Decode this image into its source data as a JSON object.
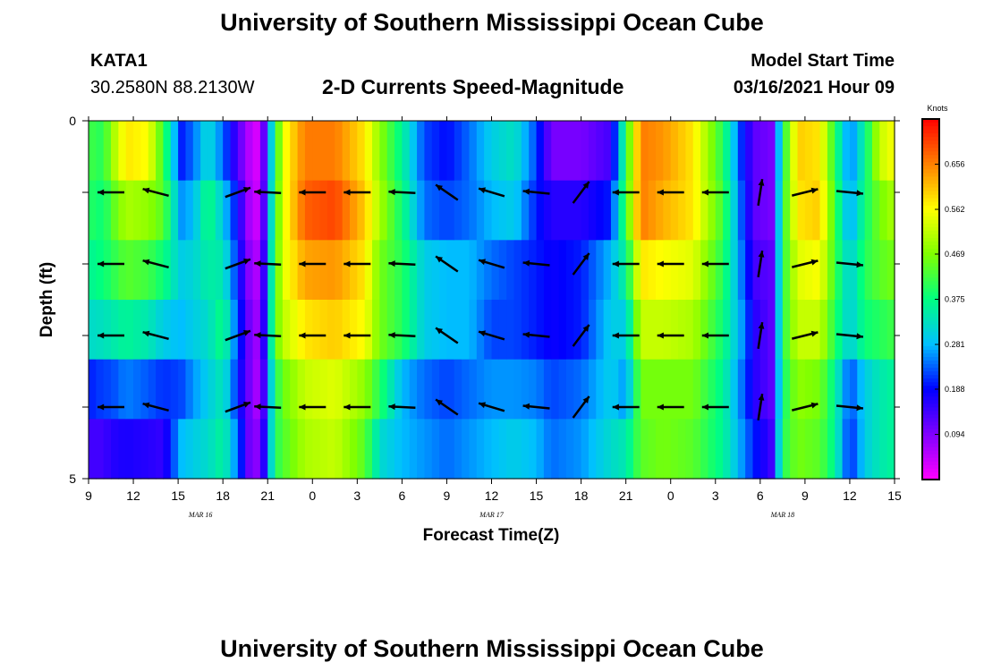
{
  "page": {
    "top_title": "University of Southern Mississippi Ocean Cube",
    "bottom_title": "University of Southern Mississippi Ocean Cube",
    "station_id": "KATA1",
    "station_coords": "30.2580N 88.2130W",
    "model_start_label": "Model Start Time",
    "model_start_value": "03/16/2021 Hour 09"
  },
  "chart_data": {
    "type": "heatmap",
    "title": "2-D Currents Speed-Magnitude",
    "xlabel": "Forecast Time(Z)",
    "ylabel": "Depth (ft)",
    "x_tick_labels": [
      "9",
      "12",
      "15",
      "18",
      "21",
      "0",
      "3",
      "6",
      "9",
      "12",
      "15",
      "18",
      "21",
      "0",
      "3",
      "6",
      "9",
      "12",
      "15"
    ],
    "x_hours_since_start": [
      0,
      3,
      6,
      9,
      12,
      15,
      18,
      21,
      24,
      27,
      30,
      33,
      36,
      39,
      42,
      45,
      48,
      51,
      54
    ],
    "date_labels": [
      {
        "text": "MAR 16",
        "hour": 7.5
      },
      {
        "text": "MAR 17",
        "hour": 27
      },
      {
        "text": "MAR 18",
        "hour": 46.5
      }
    ],
    "xlim_hours": [
      0,
      54
    ],
    "y_tick_labels": [
      "0",
      "5"
    ],
    "y_ticks": [
      0,
      1,
      2,
      3,
      4,
      5
    ],
    "ylim": [
      0,
      5
    ],
    "y_inverted": true,
    "colorbar": {
      "unit": "Knots",
      "ticks": [
        "0.656",
        "0.562",
        "0.469",
        "0.375",
        "0.281",
        "0.188",
        "0.094"
      ],
      "tick_values": [
        0.656,
        0.562,
        0.469,
        0.375,
        0.281,
        0.188,
        0.094
      ],
      "range": [
        0.0,
        0.75
      ],
      "colors": [
        "#ff00ff",
        "#8000ff",
        "#0000ff",
        "#00c0ff",
        "#00ff80",
        "#80ff00",
        "#ffff00",
        "#ff8000",
        "#ff0000"
      ]
    },
    "grid": false,
    "speed_profile": [
      {
        "h": 0.0,
        "v": [
          0.42,
          0.4,
          0.36,
          0.32,
          0.2,
          0.14
        ]
      },
      {
        "h": 1.0,
        "v": [
          0.4,
          0.38,
          0.38,
          0.33,
          0.22,
          0.14
        ]
      },
      {
        "h": 1.5,
        "v": [
          0.48,
          0.43,
          0.4,
          0.34,
          0.22,
          0.16
        ]
      },
      {
        "h": 2.5,
        "v": [
          0.58,
          0.5,
          0.44,
          0.36,
          0.25,
          0.17
        ]
      },
      {
        "h": 4.0,
        "v": [
          0.56,
          0.48,
          0.42,
          0.34,
          0.23,
          0.16
        ]
      },
      {
        "h": 5.0,
        "v": [
          0.42,
          0.44,
          0.38,
          0.3,
          0.21,
          0.15
        ]
      },
      {
        "h": 6.2,
        "v": [
          0.2,
          0.26,
          0.3,
          0.28,
          0.22,
          0.28
        ]
      },
      {
        "h": 7.0,
        "v": [
          0.24,
          0.28,
          0.31,
          0.3,
          0.26,
          0.3
        ]
      },
      {
        "h": 8.0,
        "v": [
          0.32,
          0.38,
          0.35,
          0.32,
          0.3,
          0.32
        ]
      },
      {
        "h": 9.0,
        "v": [
          0.24,
          0.3,
          0.34,
          0.38,
          0.34,
          0.36
        ]
      },
      {
        "h": 10.0,
        "v": [
          0.13,
          0.18,
          0.2,
          0.22,
          0.2,
          0.24
        ]
      },
      {
        "h": 10.8,
        "v": [
          0.05,
          0.06,
          0.08,
          0.1,
          0.1,
          0.1
        ]
      },
      {
        "h": 11.5,
        "v": [
          0.02,
          0.03,
          0.05,
          0.06,
          0.05,
          0.08
        ]
      },
      {
        "h": 12.5,
        "v": [
          0.4,
          0.42,
          0.44,
          0.45,
          0.4,
          0.4
        ]
      },
      {
        "h": 13.2,
        "v": [
          0.56,
          0.56,
          0.55,
          0.52,
          0.46,
          0.44
        ]
      },
      {
        "h": 14.5,
        "v": [
          0.66,
          0.68,
          0.63,
          0.58,
          0.52,
          0.5
        ]
      },
      {
        "h": 16.5,
        "v": [
          0.66,
          0.7,
          0.64,
          0.6,
          0.54,
          0.52
        ]
      },
      {
        "h": 18.5,
        "v": [
          0.58,
          0.6,
          0.58,
          0.56,
          0.48,
          0.44
        ]
      },
      {
        "h": 19.5,
        "v": [
          0.48,
          0.5,
          0.46,
          0.46,
          0.4,
          0.32
        ]
      },
      {
        "h": 21.0,
        "v": [
          0.36,
          0.38,
          0.4,
          0.4,
          0.28,
          0.28
        ]
      },
      {
        "h": 22.5,
        "v": [
          0.22,
          0.24,
          0.3,
          0.3,
          0.24,
          0.26
        ]
      },
      {
        "h": 24.0,
        "v": [
          0.19,
          0.22,
          0.28,
          0.28,
          0.22,
          0.24
        ]
      },
      {
        "h": 25.5,
        "v": [
          0.24,
          0.24,
          0.28,
          0.28,
          0.24,
          0.26
        ]
      },
      {
        "h": 27.0,
        "v": [
          0.3,
          0.28,
          0.24,
          0.22,
          0.26,
          0.28
        ]
      },
      {
        "h": 28.5,
        "v": [
          0.33,
          0.3,
          0.22,
          0.22,
          0.26,
          0.3
        ]
      },
      {
        "h": 30.0,
        "v": [
          0.22,
          0.2,
          0.2,
          0.2,
          0.25,
          0.28
        ]
      },
      {
        "h": 31.0,
        "v": [
          0.1,
          0.16,
          0.18,
          0.18,
          0.22,
          0.24
        ]
      },
      {
        "h": 33.0,
        "v": [
          0.1,
          0.16,
          0.2,
          0.2,
          0.24,
          0.26
        ]
      },
      {
        "h": 35.0,
        "v": [
          0.14,
          0.2,
          0.28,
          0.3,
          0.3,
          0.32
        ]
      },
      {
        "h": 36.0,
        "v": [
          0.4,
          0.42,
          0.36,
          0.3,
          0.26,
          0.34
        ]
      },
      {
        "h": 37.0,
        "v": [
          0.66,
          0.66,
          0.58,
          0.52,
          0.46,
          0.44
        ]
      },
      {
        "h": 38.5,
        "v": [
          0.64,
          0.62,
          0.56,
          0.52,
          0.46,
          0.46
        ]
      },
      {
        "h": 40.5,
        "v": [
          0.58,
          0.58,
          0.54,
          0.5,
          0.46,
          0.44
        ]
      },
      {
        "h": 42.5,
        "v": [
          0.4,
          0.42,
          0.4,
          0.38,
          0.36,
          0.36
        ]
      },
      {
        "h": 43.8,
        "v": [
          0.2,
          0.22,
          0.24,
          0.26,
          0.24,
          0.26
        ]
      },
      {
        "h": 44.6,
        "v": [
          0.12,
          0.12,
          0.14,
          0.16,
          0.16,
          0.2
        ]
      },
      {
        "h": 45.8,
        "v": [
          0.1,
          0.1,
          0.12,
          0.12,
          0.12,
          0.14
        ]
      },
      {
        "h": 46.5,
        "v": [
          0.38,
          0.4,
          0.4,
          0.4,
          0.38,
          0.4
        ]
      },
      {
        "h": 47.5,
        "v": [
          0.6,
          0.58,
          0.54,
          0.52,
          0.48,
          0.46
        ]
      },
      {
        "h": 49.0,
        "v": [
          0.58,
          0.6,
          0.56,
          0.52,
          0.46,
          0.44
        ]
      },
      {
        "h": 50.0,
        "v": [
          0.4,
          0.42,
          0.42,
          0.4,
          0.36,
          0.36
        ]
      },
      {
        "h": 51.0,
        "v": [
          0.24,
          0.26,
          0.3,
          0.3,
          0.22,
          0.2
        ]
      },
      {
        "h": 52.0,
        "v": [
          0.36,
          0.38,
          0.4,
          0.38,
          0.3,
          0.3
        ]
      },
      {
        "h": 53.0,
        "v": [
          0.52,
          0.46,
          0.44,
          0.4,
          0.34,
          0.34
        ]
      },
      {
        "h": 54.0,
        "v": [
          0.56,
          0.5,
          0.46,
          0.42,
          0.36,
          0.36
        ]
      }
    ],
    "vector_depths": [
      1,
      2,
      3,
      4
    ],
    "vectors": [
      {
        "h": 1.5,
        "u": -1.0,
        "v": 0.0
      },
      {
        "h": 4.5,
        "u": -0.95,
        "v": 0.25
      },
      {
        "h": 10.0,
        "u": 0.95,
        "v": 0.35
      },
      {
        "h": 12.0,
        "u": -1.0,
        "v": 0.05
      },
      {
        "h": 15.0,
        "u": -1.0,
        "v": 0.0
      },
      {
        "h": 18.0,
        "u": -1.0,
        "v": 0.0
      },
      {
        "h": 21.0,
        "u": -1.0,
        "v": 0.05
      },
      {
        "h": 24.0,
        "u": -0.8,
        "v": 0.55
      },
      {
        "h": 27.0,
        "u": -1.0,
        "v": 0.3
      },
      {
        "h": 30.0,
        "u": -1.0,
        "v": 0.1
      },
      {
        "h": 33.0,
        "u": 0.6,
        "v": 0.8
      },
      {
        "h": 36.0,
        "u": -1.0,
        "v": 0.0
      },
      {
        "h": 39.0,
        "u": -1.0,
        "v": 0.0
      },
      {
        "h": 42.0,
        "u": -1.0,
        "v": 0.0
      },
      {
        "h": 45.0,
        "u": 0.15,
        "v": 1.0
      },
      {
        "h": 48.0,
        "u": 1.0,
        "v": 0.25
      },
      {
        "h": 51.0,
        "u": 1.0,
        "v": -0.1
      }
    ]
  }
}
